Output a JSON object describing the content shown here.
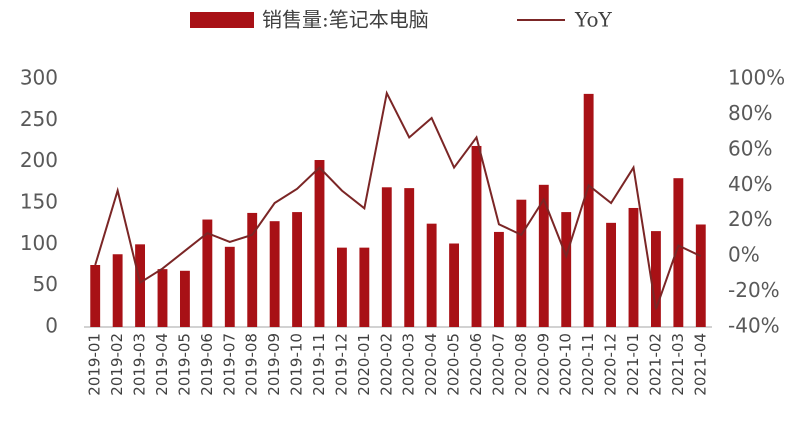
{
  "chart_data": {
    "type": "bar_line",
    "categories": [
      "2019-01",
      "2019-02",
      "2019-03",
      "2019-04",
      "2019-05",
      "2019-06",
      "2019-07",
      "2019-08",
      "2019-09",
      "2019-10",
      "2019-11",
      "2019-12",
      "2020-01",
      "2020-02",
      "2020-03",
      "2020-04",
      "2020-05",
      "2020-06",
      "2020-07",
      "2020-08",
      "2020-09",
      "2020-10",
      "2020-11",
      "2020-12",
      "2021-01",
      "2021-02",
      "2021-03",
      "2021-04"
    ],
    "series": [
      {
        "name": "销售量:笔记本电脑",
        "type": "bar",
        "color": "#a81116",
        "axis": "y",
        "values": [
          75,
          88,
          100,
          70,
          68,
          130,
          97,
          138,
          128,
          139,
          202,
          96,
          96,
          169,
          168,
          125,
          101,
          219,
          115,
          154,
          172,
          139,
          282,
          126,
          144,
          116,
          180,
          124
        ]
      },
      {
        "name": "YoY",
        "type": "line",
        "color": "#7b2626",
        "axis": "y2",
        "values": [
          -5,
          37,
          -15,
          -7,
          3,
          13,
          8,
          12,
          30,
          38,
          50,
          37,
          27,
          92,
          67,
          78,
          50,
          67,
          18,
          12,
          32,
          0,
          40,
          30,
          50,
          -30,
          6,
          0
        ]
      }
    ],
    "ylim": [
      0,
      300
    ],
    "yticks": [
      0,
      50,
      100,
      150,
      200,
      250,
      300
    ],
    "y2lim": [
      -40,
      100
    ],
    "y2ticks": [
      {
        "value": -40,
        "label": "-40%"
      },
      {
        "value": -20,
        "label": "-20%"
      },
      {
        "value": 0,
        "label": "0%"
      },
      {
        "value": 20,
        "label": "20%"
      },
      {
        "value": 40,
        "label": "40%"
      },
      {
        "value": 60,
        "label": "60%"
      },
      {
        "value": 80,
        "label": "80%"
      },
      {
        "value": 100,
        "label": "100%"
      }
    ],
    "grid": false,
    "legend": "top"
  }
}
